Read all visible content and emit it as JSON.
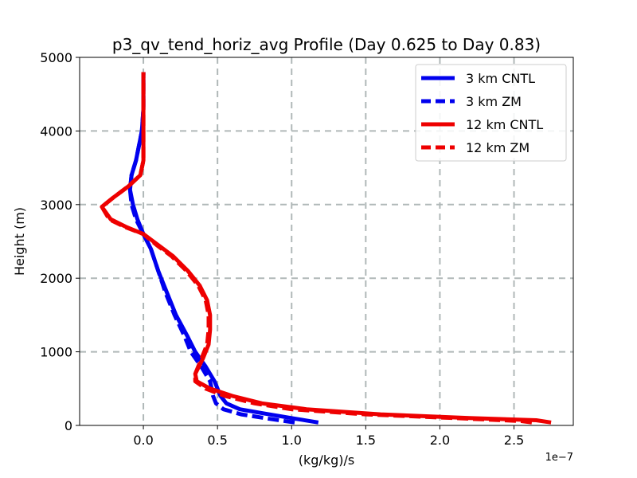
{
  "chart_data": {
    "type": "line",
    "title": "p3_qv_tend_horiz_avg Profile (Day 0.625 to Day 0.83)",
    "xlabel": "(kg/kg)/s",
    "ylabel": "Height (m)",
    "x_offset_label": "1e−7",
    "xlim": [
      -0.43,
      2.9
    ],
    "ylim": [
      0,
      5000
    ],
    "xticks": [
      0.0,
      0.5,
      1.0,
      1.5,
      2.0,
      2.5
    ],
    "xtick_labels": [
      "0.0",
      "0.5",
      "1.0",
      "1.5",
      "2.0",
      "2.5"
    ],
    "yticks": [
      0,
      1000,
      2000,
      3000,
      4000,
      5000
    ],
    "ytick_labels": [
      "0",
      "1000",
      "2000",
      "3000",
      "4000",
      "5000"
    ],
    "grid": true,
    "legend_position": "top-right",
    "series": [
      {
        "name": "3 km CNTL",
        "color": "#0000ee",
        "dashed": false,
        "points": [
          [
            1.18,
            40
          ],
          [
            1.0,
            100
          ],
          [
            0.82,
            160
          ],
          [
            0.65,
            220
          ],
          [
            0.56,
            300
          ],
          [
            0.52,
            400
          ],
          [
            0.48,
            600
          ],
          [
            0.42,
            800
          ],
          [
            0.35,
            1000
          ],
          [
            0.3,
            1200
          ],
          [
            0.22,
            1500
          ],
          [
            0.16,
            1800
          ],
          [
            0.1,
            2100
          ],
          [
            0.05,
            2400
          ],
          [
            0.0,
            2600
          ],
          [
            -0.04,
            2800
          ],
          [
            -0.07,
            3000
          ],
          [
            -0.09,
            3200
          ],
          [
            -0.08,
            3400
          ],
          [
            -0.05,
            3600
          ],
          [
            -0.03,
            3800
          ],
          [
            -0.01,
            4000
          ],
          [
            0.0,
            4300
          ],
          [
            0.0,
            4800
          ]
        ]
      },
      {
        "name": "3 km ZM",
        "color": "#0000ee",
        "dashed": true,
        "points": [
          [
            1.02,
            40
          ],
          [
            0.85,
            90
          ],
          [
            0.66,
            150
          ],
          [
            0.54,
            220
          ],
          [
            0.49,
            300
          ],
          [
            0.47,
            400
          ],
          [
            0.45,
            600
          ],
          [
            0.39,
            800
          ],
          [
            0.32,
            1000
          ],
          [
            0.28,
            1200
          ],
          [
            0.21,
            1500
          ],
          [
            0.15,
            1800
          ],
          [
            0.1,
            2100
          ],
          [
            0.05,
            2400
          ],
          [
            0.0,
            2600
          ],
          [
            -0.05,
            2800
          ],
          [
            -0.08,
            3000
          ],
          [
            -0.09,
            3200
          ],
          [
            -0.08,
            3400
          ],
          [
            -0.05,
            3600
          ],
          [
            -0.03,
            3800
          ],
          [
            -0.01,
            4000
          ],
          [
            0.0,
            4300
          ],
          [
            0.0,
            4800
          ]
        ]
      },
      {
        "name": "12 km CNTL",
        "color": "#ee0000",
        "dashed": false,
        "points": [
          [
            2.75,
            40
          ],
          [
            2.65,
            70
          ],
          [
            2.2,
            100
          ],
          [
            1.6,
            150
          ],
          [
            1.1,
            220
          ],
          [
            0.8,
            300
          ],
          [
            0.6,
            400
          ],
          [
            0.45,
            500
          ],
          [
            0.36,
            600
          ],
          [
            0.35,
            700
          ],
          [
            0.4,
            900
          ],
          [
            0.44,
            1100
          ],
          [
            0.45,
            1300
          ],
          [
            0.45,
            1500
          ],
          [
            0.43,
            1700
          ],
          [
            0.38,
            1900
          ],
          [
            0.3,
            2100
          ],
          [
            0.2,
            2300
          ],
          [
            0.1,
            2450
          ],
          [
            0.0,
            2600
          ],
          [
            -0.12,
            2700
          ],
          [
            -0.22,
            2800
          ],
          [
            -0.28,
            2970
          ],
          [
            -0.2,
            3100
          ],
          [
            -0.1,
            3250
          ],
          [
            -0.02,
            3400
          ],
          [
            0.0,
            3600
          ],
          [
            0.0,
            4000
          ],
          [
            0.0,
            4800
          ]
        ]
      },
      {
        "name": "12 km ZM",
        "color": "#ee0000",
        "dashed": true,
        "points": [
          [
            2.62,
            40
          ],
          [
            2.55,
            60
          ],
          [
            2.1,
            100
          ],
          [
            1.5,
            150
          ],
          [
            1.0,
            220
          ],
          [
            0.75,
            300
          ],
          [
            0.55,
            400
          ],
          [
            0.42,
            500
          ],
          [
            0.35,
            600
          ],
          [
            0.35,
            700
          ],
          [
            0.39,
            900
          ],
          [
            0.43,
            1100
          ],
          [
            0.44,
            1300
          ],
          [
            0.44,
            1500
          ],
          [
            0.42,
            1700
          ],
          [
            0.37,
            1900
          ],
          [
            0.29,
            2100
          ],
          [
            0.19,
            2300
          ],
          [
            0.09,
            2450
          ],
          [
            0.0,
            2600
          ],
          [
            -0.13,
            2700
          ],
          [
            -0.23,
            2800
          ],
          [
            -0.28,
            2970
          ],
          [
            -0.2,
            3100
          ],
          [
            -0.1,
            3250
          ],
          [
            -0.02,
            3400
          ],
          [
            0.0,
            3600
          ],
          [
            0.0,
            4000
          ],
          [
            0.0,
            4800
          ]
        ]
      }
    ]
  }
}
